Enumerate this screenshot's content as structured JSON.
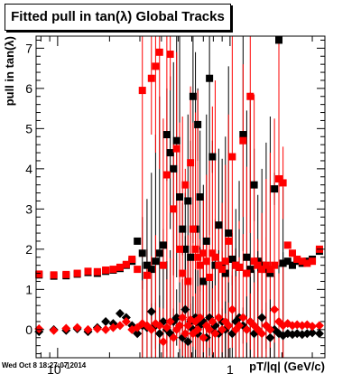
{
  "chart_data": {
    "type": "scatter",
    "title": "Fitted pull in tan(λ)  Global Tracks",
    "xlabel": "pT/|q| (GeV/c)",
    "ylabel": "pull in tan(λ)",
    "xscale": "log",
    "xlim": [
      0.075,
      3.55
    ],
    "ylim": [
      -0.7,
      7.3
    ],
    "grid": false,
    "legend": "none",
    "ytick_labels": [
      "0",
      "1",
      "2",
      "3",
      "4",
      "5",
      "6",
      "7"
    ],
    "xtick_labels": [
      "10^-1",
      "1"
    ],
    "series": [
      {
        "color": "#000000",
        "marker": "square",
        "points": [
          [
            0.078,
            1.36
          ],
          [
            0.095,
            1.33
          ],
          [
            0.112,
            1.34
          ],
          [
            0.13,
            1.38
          ],
          [
            0.15,
            1.42
          ],
          [
            0.17,
            1.4
          ],
          [
            0.19,
            1.45
          ],
          [
            0.21,
            1.48
          ],
          [
            0.23,
            1.52
          ],
          [
            0.25,
            1.6
          ],
          [
            0.27,
            1.7
          ],
          [
            0.29,
            2.2
          ],
          [
            0.31,
            1.9
          ],
          [
            0.33,
            1.6
          ],
          [
            0.35,
            1.5
          ],
          [
            0.37,
            1.7
          ],
          [
            0.39,
            1.9
          ],
          [
            0.41,
            2.1
          ],
          [
            0.43,
            4.85
          ],
          [
            0.45,
            4.4
          ],
          [
            0.47,
            4.0
          ],
          [
            0.49,
            4.7
          ],
          [
            0.51,
            3.3
          ],
          [
            0.53,
            2.5
          ],
          [
            0.55,
            2.0
          ],
          [
            0.57,
            3.2
          ],
          [
            0.59,
            1.8
          ],
          [
            0.61,
            5.8
          ],
          [
            0.63,
            2.5
          ],
          [
            0.65,
            5.1
          ],
          [
            0.67,
            3.3
          ],
          [
            0.7,
            1.2
          ],
          [
            0.73,
            2.2
          ],
          [
            0.76,
            6.25
          ],
          [
            0.79,
            4.3
          ],
          [
            0.82,
            1.6
          ],
          [
            0.86,
            2.6
          ],
          [
            0.9,
            1.6
          ],
          [
            0.94,
            1.4
          ],
          [
            0.98,
            2.4
          ],
          [
            1.03,
            1.75
          ],
          [
            1.08,
            1.6
          ],
          [
            1.13,
            1.55
          ],
          [
            1.19,
            4.85
          ],
          [
            1.25,
            1.8
          ],
          [
            1.31,
            1.5
          ],
          [
            1.38,
            3.6
          ],
          [
            1.45,
            1.7
          ],
          [
            1.53,
            1.6
          ],
          [
            1.62,
            1.5
          ],
          [
            1.71,
            1.4
          ],
          [
            1.81,
            3.5
          ],
          [
            1.92,
            7.2
          ],
          [
            2.03,
            1.65
          ],
          [
            2.16,
            1.7
          ],
          [
            2.3,
            1.6
          ],
          [
            2.45,
            1.7
          ],
          [
            2.62,
            1.65
          ],
          [
            2.8,
            1.7
          ],
          [
            3.0,
            1.75
          ],
          [
            3.3,
            1.95
          ]
        ]
      },
      {
        "color": "#ff0000",
        "marker": "square",
        "points": [
          [
            0.078,
            1.38
          ],
          [
            0.095,
            1.36
          ],
          [
            0.112,
            1.37
          ],
          [
            0.13,
            1.4
          ],
          [
            0.15,
            1.45
          ],
          [
            0.17,
            1.44
          ],
          [
            0.19,
            1.48
          ],
          [
            0.21,
            1.5
          ],
          [
            0.23,
            1.55
          ],
          [
            0.25,
            1.62
          ],
          [
            0.27,
            1.75
          ],
          [
            0.29,
            1.5
          ],
          [
            0.31,
            5.95
          ],
          [
            0.33,
            1.35
          ],
          [
            0.35,
            6.25
          ],
          [
            0.37,
            6.55
          ],
          [
            0.39,
            6.9
          ],
          [
            0.41,
            1.6
          ],
          [
            0.43,
            3.85
          ],
          [
            0.45,
            6.85
          ],
          [
            0.47,
            3.0
          ],
          [
            0.49,
            4.5
          ],
          [
            0.51,
            2.0
          ],
          [
            0.53,
            1.4
          ],
          [
            0.55,
            3.6
          ],
          [
            0.57,
            1.2
          ],
          [
            0.59,
            4.15
          ],
          [
            0.61,
            2.5
          ],
          [
            0.63,
            2.0
          ],
          [
            0.65,
            1.8
          ],
          [
            0.67,
            1.6
          ],
          [
            0.7,
            1.9
          ],
          [
            0.73,
            1.7
          ],
          [
            0.76,
            1.3
          ],
          [
            0.79,
            1.9
          ],
          [
            0.82,
            1.8
          ],
          [
            0.86,
            1.6
          ],
          [
            0.9,
            1.5
          ],
          [
            0.94,
            1.7
          ],
          [
            0.98,
            2.2
          ],
          [
            1.03,
            4.3
          ],
          [
            1.08,
            1.6
          ],
          [
            1.13,
            1.55
          ],
          [
            1.19,
            4.7
          ],
          [
            1.25,
            1.4
          ],
          [
            1.31,
            5.8
          ],
          [
            1.38,
            1.7
          ],
          [
            1.45,
            1.6
          ],
          [
            1.53,
            1.5
          ],
          [
            1.62,
            1.6
          ],
          [
            1.71,
            1.5
          ],
          [
            1.81,
            1.6
          ],
          [
            1.92,
            3.75
          ],
          [
            2.03,
            3.65
          ],
          [
            2.16,
            2.1
          ],
          [
            2.3,
            1.9
          ],
          [
            2.45,
            1.75
          ],
          [
            2.62,
            1.7
          ],
          [
            2.8,
            1.65
          ],
          [
            3.0,
            1.7
          ],
          [
            3.3,
            2.0
          ]
        ]
      },
      {
        "color": "#000000",
        "marker": "diamond",
        "points": [
          [
            0.078,
            -0.05
          ],
          [
            0.095,
            0.0
          ],
          [
            0.112,
            -0.02
          ],
          [
            0.13,
            0.02
          ],
          [
            0.15,
            -0.05
          ],
          [
            0.17,
            0.05
          ],
          [
            0.19,
            0.2
          ],
          [
            0.21,
            0.15
          ],
          [
            0.23,
            0.4
          ],
          [
            0.25,
            0.3
          ],
          [
            0.27,
            0.1
          ],
          [
            0.29,
            -0.1
          ],
          [
            0.31,
            0.1
          ],
          [
            0.33,
            0.05
          ],
          [
            0.35,
            0.45
          ],
          [
            0.37,
            0.1
          ],
          [
            0.39,
            -0.1
          ],
          [
            0.41,
            0.2
          ],
          [
            0.43,
            0.0
          ],
          [
            0.45,
            -0.1
          ],
          [
            0.47,
            0.2
          ],
          [
            0.49,
            0.3
          ],
          [
            0.51,
            0.1
          ],
          [
            0.53,
            -0.2
          ],
          [
            0.55,
            0.5
          ],
          [
            0.57,
            -0.3
          ],
          [
            0.59,
            0.2
          ],
          [
            0.61,
            0.0
          ],
          [
            0.63,
            0.3
          ],
          [
            0.65,
            -0.1
          ],
          [
            0.67,
            0.1
          ],
          [
            0.7,
            0.2
          ],
          [
            0.73,
            -0.2
          ],
          [
            0.76,
            0.3
          ],
          [
            0.79,
            0.0
          ],
          [
            0.82,
            0.1
          ],
          [
            0.86,
            -0.1
          ],
          [
            0.9,
            0.2
          ],
          [
            0.94,
            0.0
          ],
          [
            0.98,
            0.1
          ],
          [
            1.03,
            -0.1
          ],
          [
            1.08,
            0.2
          ],
          [
            1.13,
            0.3
          ],
          [
            1.19,
            0.1
          ],
          [
            1.25,
            0.0
          ],
          [
            1.31,
            0.2
          ],
          [
            1.38,
            -0.1
          ],
          [
            1.45,
            0.0
          ],
          [
            1.53,
            0.3
          ],
          [
            1.62,
            0.1
          ],
          [
            1.71,
            -0.2
          ],
          [
            1.81,
            0.0
          ],
          [
            1.92,
            -0.1
          ],
          [
            2.03,
            -0.15
          ],
          [
            2.16,
            -0.1
          ],
          [
            2.3,
            -0.12
          ],
          [
            2.45,
            -0.1
          ],
          [
            2.62,
            -0.12
          ],
          [
            2.8,
            -0.1
          ],
          [
            3.0,
            -0.08
          ],
          [
            3.3,
            -0.1
          ]
        ]
      },
      {
        "color": "#ff0000",
        "marker": "diamond",
        "points": [
          [
            0.078,
            0.02
          ],
          [
            0.095,
            -0.02
          ],
          [
            0.112,
            0.03
          ],
          [
            0.13,
            0.05
          ],
          [
            0.15,
            0.0
          ],
          [
            0.17,
            0.02
          ],
          [
            0.19,
            0.0
          ],
          [
            0.21,
            0.05
          ],
          [
            0.23,
            0.1
          ],
          [
            0.25,
            0.2
          ],
          [
            0.27,
            0.0
          ],
          [
            0.29,
            0.05
          ],
          [
            0.31,
            0.15
          ],
          [
            0.33,
            0.1
          ],
          [
            0.35,
            0.0
          ],
          [
            0.37,
            0.15
          ],
          [
            0.39,
            0.1
          ],
          [
            0.41,
            -0.3
          ],
          [
            0.43,
            0.05
          ],
          [
            0.45,
            0.2
          ],
          [
            0.47,
            -0.2
          ],
          [
            0.49,
            0.0
          ],
          [
            0.51,
            0.1
          ],
          [
            0.53,
            0.3
          ],
          [
            0.55,
            -0.1
          ],
          [
            0.57,
            0.1
          ],
          [
            0.59,
            0.25
          ],
          [
            0.61,
            -0.1
          ],
          [
            0.63,
            0.2
          ],
          [
            0.65,
            0.0
          ],
          [
            0.67,
            0.3
          ],
          [
            0.7,
            -0.2
          ],
          [
            0.73,
            0.1
          ],
          [
            0.76,
            0.0
          ],
          [
            0.79,
            0.2
          ],
          [
            0.82,
            -0.1
          ],
          [
            0.86,
            0.3
          ],
          [
            0.9,
            0.0
          ],
          [
            0.94,
            0.2
          ],
          [
            0.98,
            0.1
          ],
          [
            1.03,
            0.5
          ],
          [
            1.08,
            0.0
          ],
          [
            1.13,
            0.1
          ],
          [
            1.19,
            0.3
          ],
          [
            1.25,
            0.0
          ],
          [
            1.31,
            0.2
          ],
          [
            1.38,
            0.1
          ],
          [
            1.45,
            0.0
          ],
          [
            1.53,
            -0.1
          ],
          [
            1.62,
            0.1
          ],
          [
            1.71,
            0.0
          ],
          [
            1.81,
            0.5
          ],
          [
            1.92,
            0.2
          ],
          [
            2.03,
            0.1
          ],
          [
            2.16,
            0.15
          ],
          [
            2.3,
            0.1
          ],
          [
            2.45,
            0.12
          ],
          [
            2.62,
            0.1
          ],
          [
            2.8,
            0.12
          ],
          [
            3.0,
            0.08
          ],
          [
            3.3,
            0.1
          ]
        ]
      }
    ]
  },
  "footer": {
    "timestamp": "Wed Oct  8 18:27:07 2014"
  }
}
